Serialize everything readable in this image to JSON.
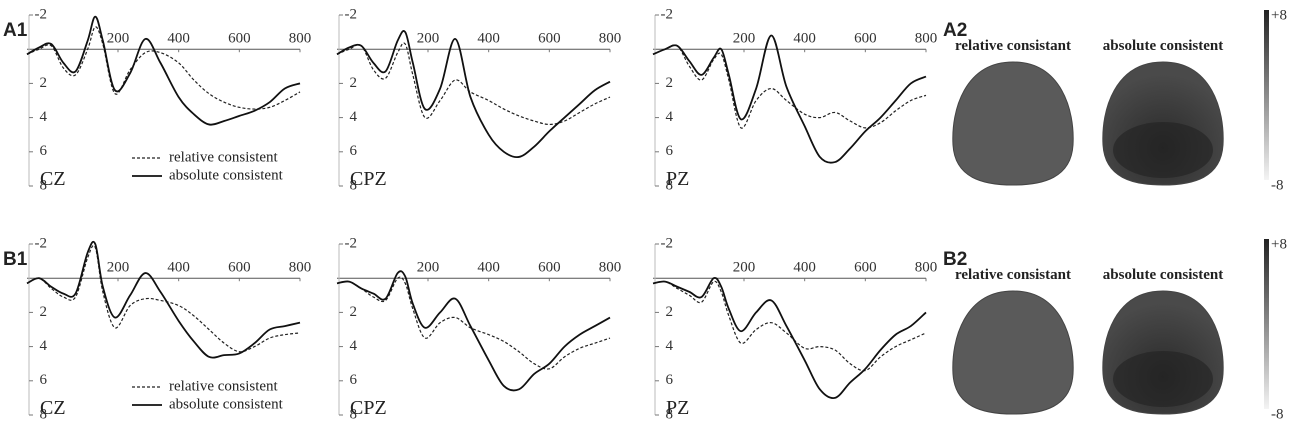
{
  "chart_data": [
    {
      "type": "line",
      "panel": "A1",
      "label": "CZ",
      "xlim": [
        -100,
        800
      ],
      "ylim": [
        -2,
        8
      ],
      "y_inverted": true,
      "xticks": [
        200,
        400,
        600,
        800
      ],
      "yticks": [
        -2,
        2,
        4,
        6,
        8
      ],
      "x": [
        -100,
        -60,
        -20,
        20,
        60,
        100,
        125,
        150,
        190,
        240,
        290,
        340,
        400,
        450,
        500,
        550,
        600,
        650,
        700,
        750,
        800
      ],
      "series": [
        {
          "name": "relative consistent",
          "color": "#222222",
          "dash": true,
          "values": [
            0.3,
            0,
            -0.2,
            1.1,
            1.5,
            0,
            -1.3,
            -0.3,
            2.6,
            1.2,
            0.2,
            0.2,
            0.8,
            1.8,
            2.6,
            3.1,
            3.4,
            3.5,
            3.4,
            3.0,
            2.5
          ]
        },
        {
          "name": "absolute consistent",
          "color": "#111111",
          "dash": false,
          "values": [
            0.3,
            -0.1,
            -0.3,
            0.8,
            1.3,
            -0.5,
            -1.9,
            -0.5,
            2.4,
            1.4,
            -0.6,
            0.8,
            2.8,
            3.8,
            4.4,
            4.2,
            3.9,
            3.6,
            3.1,
            2.3,
            2.0
          ]
        }
      ]
    },
    {
      "type": "line",
      "label": "CPZ",
      "xlim": [
        -100,
        800
      ],
      "ylim": [
        -2,
        8
      ],
      "y_inverted": true,
      "xticks": [
        200,
        400,
        600,
        800
      ],
      "yticks": [
        -2,
        2,
        4,
        6,
        8
      ],
      "x": [
        -100,
        -60,
        -20,
        20,
        60,
        100,
        125,
        150,
        190,
        240,
        290,
        340,
        400,
        450,
        500,
        550,
        600,
        650,
        700,
        750,
        800
      ],
      "series": [
        {
          "color": "#222222",
          "dash": true,
          "values": [
            0.3,
            0,
            -0.2,
            1.2,
            1.7,
            0.2,
            -0.3,
            1.5,
            4.0,
            3.0,
            1.8,
            2.5,
            3.0,
            3.5,
            3.9,
            4.2,
            4.4,
            4.2,
            3.7,
            3.2,
            2.8
          ]
        },
        {
          "color": "#111111",
          "dash": false,
          "values": [
            0.3,
            -0.1,
            -0.2,
            0.8,
            1.3,
            -0.5,
            -1.0,
            0.8,
            3.5,
            2.3,
            -0.6,
            2.8,
            5.0,
            6.0,
            6.3,
            5.7,
            4.8,
            4.0,
            3.2,
            2.4,
            1.9
          ]
        }
      ]
    },
    {
      "type": "line",
      "label": "PZ",
      "xlim": [
        -100,
        800
      ],
      "ylim": [
        -2,
        8
      ],
      "y_inverted": true,
      "xticks": [
        200,
        400,
        600,
        800
      ],
      "yticks": [
        -2,
        2,
        4,
        6,
        8
      ],
      "x": [
        -100,
        -60,
        -20,
        20,
        60,
        100,
        125,
        150,
        190,
        240,
        290,
        340,
        400,
        450,
        500,
        550,
        600,
        650,
        700,
        750,
        800
      ],
      "series": [
        {
          "color": "#222222",
          "dash": true,
          "values": [
            0.3,
            0,
            -0.2,
            1.0,
            1.8,
            0.6,
            0.3,
            1.8,
            4.6,
            3.0,
            2.3,
            3.0,
            3.8,
            4.0,
            3.7,
            4.2,
            4.6,
            4.3,
            3.6,
            3.0,
            2.7
          ]
        },
        {
          "color": "#111111",
          "dash": false,
          "values": [
            0.3,
            0,
            -0.2,
            0.7,
            1.5,
            0.5,
            0,
            1.5,
            4.1,
            2.3,
            -0.8,
            2.2,
            4.5,
            6.3,
            6.6,
            5.8,
            4.8,
            4.0,
            3.0,
            2.0,
            1.6
          ]
        }
      ]
    },
    {
      "type": "line",
      "panel": "B1",
      "label": "CZ",
      "xlim": [
        -100,
        800
      ],
      "ylim": [
        -2,
        8
      ],
      "y_inverted": true,
      "xticks": [
        200,
        400,
        600,
        800
      ],
      "yticks": [
        -2,
        2,
        4,
        6,
        8
      ],
      "x": [
        -100,
        -60,
        -20,
        20,
        60,
        100,
        125,
        150,
        190,
        240,
        290,
        340,
        400,
        450,
        500,
        550,
        600,
        650,
        700,
        750,
        800
      ],
      "series": [
        {
          "name": "relative consistent",
          "color": "#222222",
          "dash": true,
          "values": [
            0.3,
            0,
            0.6,
            1.1,
            1.1,
            -1.2,
            -1.8,
            0.8,
            2.9,
            1.6,
            1.2,
            1.3,
            1.6,
            2.2,
            3.0,
            3.8,
            4.3,
            4.0,
            3.5,
            3.3,
            3.2
          ]
        },
        {
          "name": "absolute consistent",
          "color": "#111111",
          "dash": false,
          "values": [
            0.3,
            0,
            0.5,
            0.9,
            0.9,
            -1.5,
            -2.0,
            0.5,
            2.3,
            1.0,
            -0.3,
            0.8,
            2.5,
            3.7,
            4.6,
            4.5,
            4.4,
            3.8,
            3.0,
            2.8,
            2.6
          ]
        }
      ]
    },
    {
      "type": "line",
      "label": "CPZ",
      "xlim": [
        -100,
        800
      ],
      "ylim": [
        -2,
        8
      ],
      "y_inverted": true,
      "xticks": [
        200,
        400,
        600,
        800
      ],
      "yticks": [
        -2,
        2,
        4,
        6,
        8
      ],
      "x": [
        -100,
        -60,
        -20,
        20,
        60,
        100,
        125,
        150,
        190,
        240,
        290,
        340,
        400,
        450,
        500,
        550,
        600,
        650,
        700,
        750,
        800
      ],
      "series": [
        {
          "color": "#222222",
          "dash": true,
          "values": [
            0.3,
            0.2,
            0.6,
            1.1,
            1.3,
            0,
            0.3,
            1.8,
            3.5,
            2.6,
            2.3,
            2.9,
            3.3,
            3.7,
            4.3,
            5.0,
            5.3,
            4.6,
            4.1,
            3.8,
            3.5
          ]
        },
        {
          "color": "#111111",
          "dash": false,
          "values": [
            0.3,
            0.2,
            0.6,
            0.9,
            1.2,
            -0.3,
            -0.1,
            1.5,
            2.9,
            2.0,
            1.2,
            2.8,
            4.8,
            6.3,
            6.5,
            5.6,
            5.0,
            4.0,
            3.3,
            2.8,
            2.3
          ]
        }
      ]
    },
    {
      "type": "line",
      "label": "PZ",
      "xlim": [
        -100,
        800
      ],
      "ylim": [
        -2,
        8
      ],
      "y_inverted": true,
      "xticks": [
        200,
        400,
        600,
        800
      ],
      "yticks": [
        -2,
        2,
        4,
        6,
        8
      ],
      "x": [
        -100,
        -60,
        -20,
        20,
        60,
        100,
        125,
        150,
        190,
        240,
        290,
        340,
        400,
        450,
        500,
        550,
        600,
        650,
        700,
        750,
        800
      ],
      "series": [
        {
          "color": "#222222",
          "dash": true,
          "values": [
            0.3,
            0.2,
            0.6,
            1.0,
            1.4,
            0.2,
            0.8,
            2.2,
            3.8,
            3.0,
            2.6,
            3.2,
            4.1,
            4.0,
            4.2,
            5.0,
            5.4,
            4.6,
            4.0,
            3.6,
            3.2
          ]
        },
        {
          "color": "#111111",
          "dash": false,
          "values": [
            0.3,
            0.2,
            0.5,
            0.8,
            1.1,
            0,
            0.5,
            1.8,
            3.1,
            2.0,
            1.3,
            2.8,
            4.8,
            6.5,
            7.0,
            6.1,
            5.3,
            4.2,
            3.3,
            2.8,
            2.0
          ]
        }
      ]
    }
  ],
  "maps": [
    {
      "panel": "A2",
      "titles": [
        "relative consistant",
        "absolute consistent"
      ],
      "colorbar_ticks": [
        {
          "value": 8,
          "label": "+8"
        },
        -8
      ]
    },
    {
      "panel": "B2",
      "titles": [
        "relative consistant",
        "absolute consistent"
      ],
      "colorbar_ticks": [
        {
          "value": 8,
          "label": "+8"
        },
        -8
      ]
    }
  ]
}
